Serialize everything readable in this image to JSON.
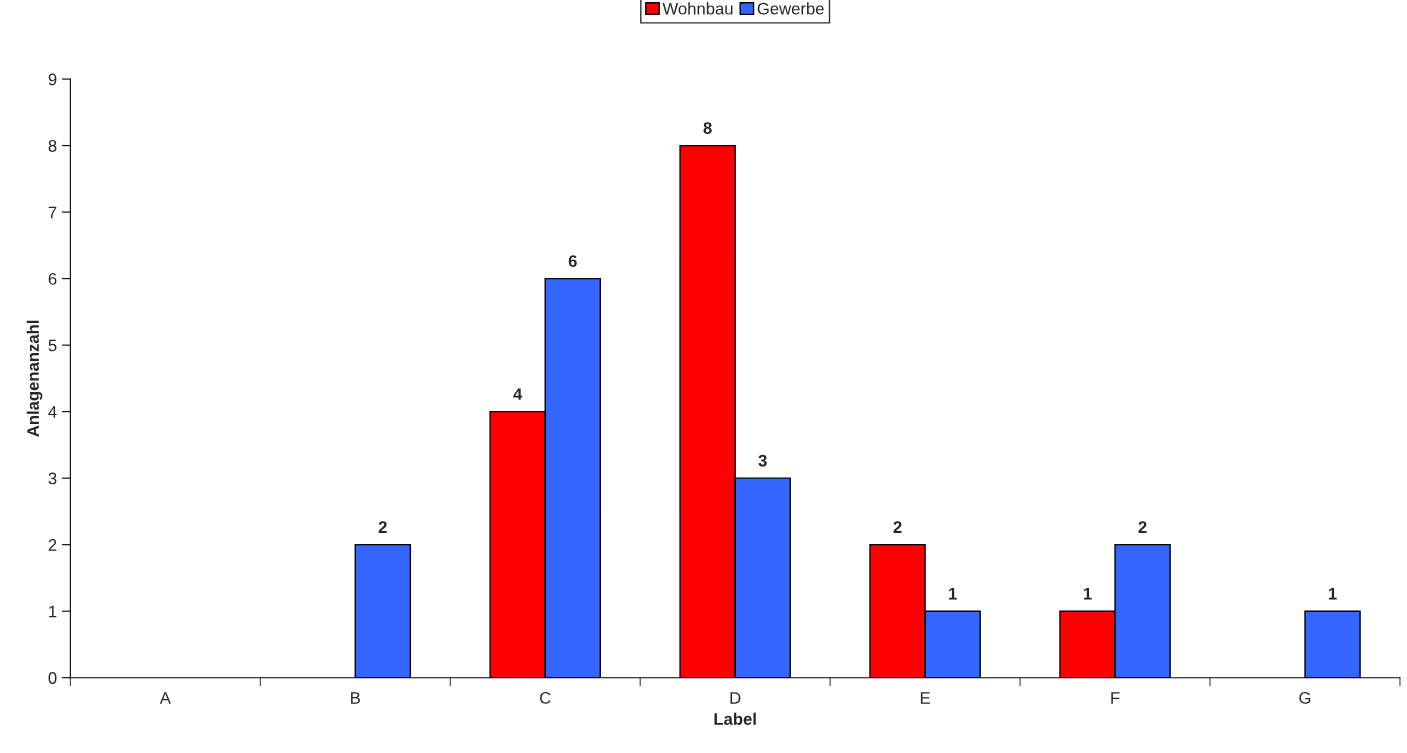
{
  "chart_data": {
    "type": "bar",
    "xlabel": "Label",
    "ylabel": "Anlagenanzahl",
    "categories": [
      "A",
      "B",
      "C",
      "D",
      "E",
      "F",
      "G"
    ],
    "series": [
      {
        "name": "Wohnbau",
        "color": "#ff0000",
        "values": [
          null,
          null,
          4,
          8,
          2,
          1,
          null
        ]
      },
      {
        "name": "Gewerbe",
        "color": "#3366ff",
        "values": [
          null,
          2,
          6,
          3,
          1,
          2,
          1
        ]
      }
    ],
    "ylim": [
      0,
      9
    ],
    "yticks": [
      0,
      1,
      2,
      3,
      4,
      5,
      6,
      7,
      8,
      9
    ],
    "data_labels": true,
    "legend": "top",
    "grid": false
  }
}
